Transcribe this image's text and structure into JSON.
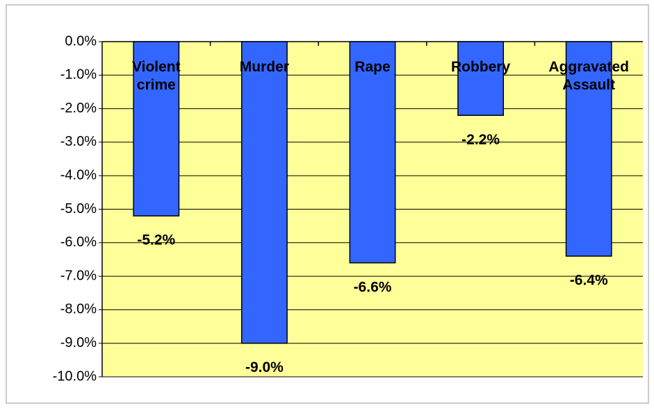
{
  "chart_data": {
    "type": "bar",
    "categories": [
      "Violent crime",
      "Murder",
      "Rape",
      "Robbery",
      "Aggravated Assault"
    ],
    "values": [
      -5.2,
      -9.0,
      -6.6,
      -2.2,
      -6.4
    ],
    "value_labels": [
      "-5.2%",
      "-9.0%",
      "-6.6%",
      "-2.2%",
      "-6.4%"
    ],
    "color": "#3366ff",
    "plot_background": "#ffff99",
    "ylim": [
      -10,
      0
    ],
    "yticks": [
      {
        "value": 0,
        "label": "0.0%"
      },
      {
        "value": -1,
        "label": "-1.0%"
      },
      {
        "value": -2,
        "label": "-2.0%"
      },
      {
        "value": -3,
        "label": "-3.0%"
      },
      {
        "value": -4,
        "label": "-4.0%"
      },
      {
        "value": -5,
        "label": "-5.0%"
      },
      {
        "value": -6,
        "label": "-6.0%"
      },
      {
        "value": -7,
        "label": "-7.0%"
      },
      {
        "value": -8,
        "label": "-8.0%"
      },
      {
        "value": -9,
        "label": "-9.0%"
      },
      {
        "value": -10,
        "label": "-10.0%"
      }
    ],
    "grid": true
  }
}
